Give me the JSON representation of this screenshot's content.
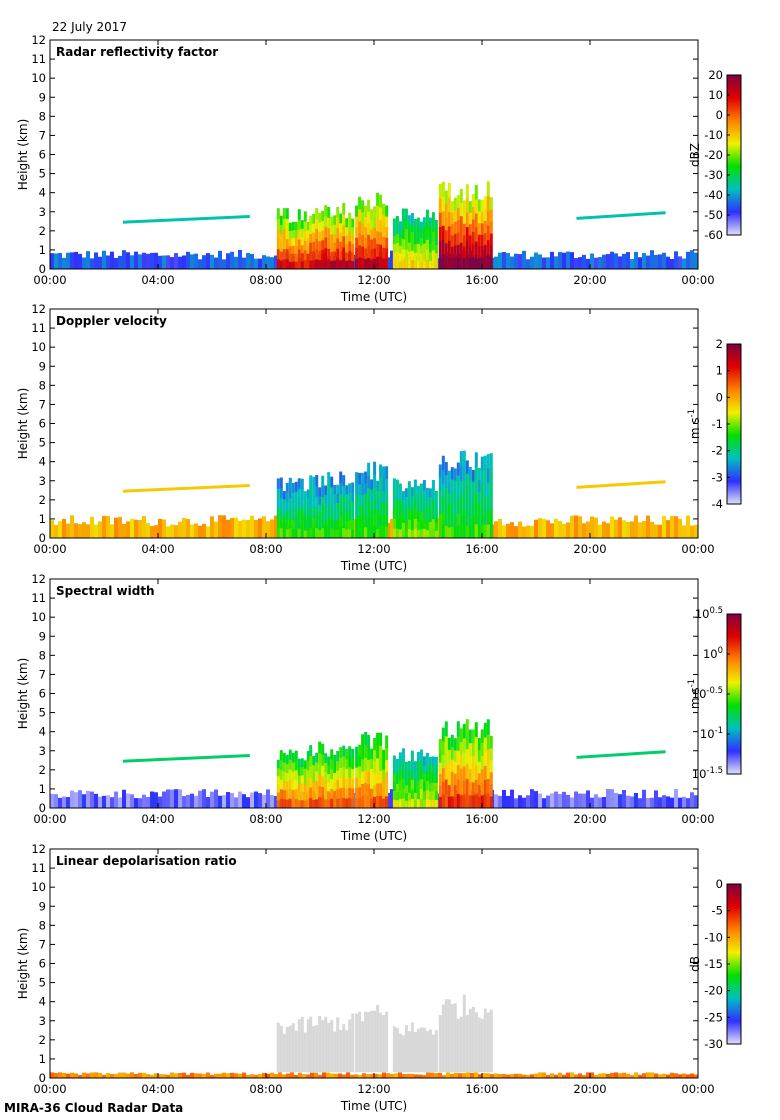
{
  "date": "22 July 2017",
  "footer": "MIRA-36 Cloud Radar Data",
  "chart_data": [
    {
      "type": "heatmap",
      "title": "Radar reflectivity factor",
      "xlabel": "Time (UTC)",
      "ylabel": "Height (km)",
      "x_ticks": [
        "00:00",
        "04:00",
        "08:00",
        "12:00",
        "16:00",
        "20:00",
        "00:00"
      ],
      "y_ticks": [
        "0",
        "1",
        "2",
        "3",
        "4",
        "5",
        "6",
        "7",
        "8",
        "9",
        "10",
        "11",
        "12"
      ],
      "ylim": [
        0,
        12
      ],
      "colorbar": {
        "label": "dBZ",
        "ticks": [
          "20",
          "10",
          "0",
          "-10",
          "-20",
          "-30",
          "-40",
          "-50",
          "-60"
        ],
        "range": [
          -60,
          20
        ]
      },
      "colors": [
        "#e0e0f8",
        "#3030ff",
        "#00c0c0",
        "#00e000",
        "#f0f000",
        "#ff8000",
        "#e00000",
        "#800040"
      ],
      "features": [
        {
          "name": "boundary layer clutter",
          "time_start_h": 0,
          "time_end_h": 24,
          "height_top_km": 1.0,
          "level": 0.18
        },
        {
          "name": "thin layer",
          "time_start_h": 2.7,
          "time_end_h": 7.4,
          "height_km": 2.5,
          "level": 0.3
        },
        {
          "name": "thin layer",
          "time_start_h": 19.5,
          "time_end_h": 22.8,
          "height_km": 2.7,
          "level": 0.3
        },
        {
          "name": "convective cell",
          "time_start_h": 8.4,
          "time_end_h": 9.6,
          "height_top_km": 3.2,
          "level": 0.85
        },
        {
          "name": "convective cell",
          "time_start_h": 9.6,
          "time_end_h": 11.2,
          "height_top_km": 3.5,
          "level": 0.9
        },
        {
          "name": "convective cell",
          "time_start_h": 11.3,
          "time_end_h": 12.5,
          "height_top_km": 4.0,
          "level": 0.9
        },
        {
          "name": "convective cell",
          "time_start_h": 12.7,
          "time_end_h": 14.3,
          "height_top_km": 3.2,
          "level": 0.6
        },
        {
          "name": "convective cell",
          "time_start_h": 14.4,
          "time_end_h": 16.4,
          "height_top_km": 4.7,
          "level": 1.0
        }
      ]
    },
    {
      "type": "heatmap",
      "title": "Doppler velocity",
      "xlabel": "Time (UTC)",
      "ylabel": "Height (km)",
      "x_ticks": [
        "00:00",
        "04:00",
        "08:00",
        "12:00",
        "16:00",
        "20:00",
        "00:00"
      ],
      "y_ticks": [
        "0",
        "1",
        "2",
        "3",
        "4",
        "5",
        "6",
        "7",
        "8",
        "9",
        "10",
        "11",
        "12"
      ],
      "ylim": [
        0,
        12
      ],
      "colorbar": {
        "label": "m s-1",
        "ticks": [
          "2",
          "1",
          "0",
          "-1",
          "-2",
          "-3",
          "-4"
        ],
        "range": [
          -4,
          2
        ]
      },
      "colors": [
        "#e0e0f8",
        "#3030ff",
        "#00c0c0",
        "#00e000",
        "#f0f000",
        "#ff8000",
        "#e00000",
        "#800040"
      ],
      "features": [
        {
          "name": "boundary layer",
          "time_start_h": 0,
          "time_end_h": 24,
          "height_top_km": 1.2,
          "level": 0.65
        },
        {
          "name": "thin layer",
          "time_start_h": 2.7,
          "time_end_h": 7.4,
          "height_km": 2.5,
          "level": 0.62
        },
        {
          "name": "thin layer",
          "time_start_h": 19.5,
          "time_end_h": 22.8,
          "height_km": 2.7,
          "level": 0.62
        },
        {
          "name": "convective cell",
          "time_start_h": 8.4,
          "time_end_h": 9.6,
          "height_top_km": 3.2,
          "level": 0.45
        },
        {
          "name": "convective cell",
          "time_start_h": 9.6,
          "time_end_h": 11.2,
          "height_top_km": 3.5,
          "level": 0.45
        },
        {
          "name": "convective cell",
          "time_start_h": 11.3,
          "time_end_h": 12.5,
          "height_top_km": 4.0,
          "level": 0.45
        },
        {
          "name": "convective cell",
          "time_start_h": 12.7,
          "time_end_h": 14.3,
          "height_top_km": 3.2,
          "level": 0.5
        },
        {
          "name": "convective cell",
          "time_start_h": 14.4,
          "time_end_h": 16.4,
          "height_top_km": 4.7,
          "level": 0.45
        }
      ]
    },
    {
      "type": "heatmap",
      "title": "Spectral width",
      "xlabel": "Time (UTC)",
      "ylabel": "Height (km)",
      "x_ticks": [
        "00:00",
        "04:00",
        "08:00",
        "12:00",
        "16:00",
        "20:00",
        "00:00"
      ],
      "y_ticks": [
        "0",
        "1",
        "2",
        "3",
        "4",
        "5",
        "6",
        "7",
        "8",
        "9",
        "10",
        "11",
        "12"
      ],
      "ylim": [
        0,
        12
      ],
      "colorbar": {
        "label": "m s-1",
        "ticks": [
          "10^0.5",
          "10^0",
          "10^-0.5",
          "10^-1",
          "10^-1.5"
        ],
        "range": [
          -1.5,
          0.5
        ],
        "scale": "log"
      },
      "colors": [
        "#e0e0f8",
        "#3030ff",
        "#00c0c0",
        "#00e000",
        "#f0f000",
        "#ff8000",
        "#e00000",
        "#800040"
      ],
      "features": [
        {
          "name": "boundary layer",
          "time_start_h": 0,
          "time_end_h": 24,
          "height_top_km": 1.0,
          "level": 0.1
        },
        {
          "name": "thin layer",
          "time_start_h": 2.7,
          "time_end_h": 7.4,
          "height_km": 2.5,
          "level": 0.35
        },
        {
          "name": "thin layer",
          "time_start_h": 19.5,
          "time_end_h": 22.8,
          "height_km": 2.7,
          "level": 0.35
        },
        {
          "name": "convective cell",
          "time_start_h": 8.4,
          "time_end_h": 9.6,
          "height_top_km": 3.2,
          "level": 0.75
        },
        {
          "name": "convective cell",
          "time_start_h": 9.6,
          "time_end_h": 11.2,
          "height_top_km": 3.5,
          "level": 0.75
        },
        {
          "name": "convective cell",
          "time_start_h": 11.3,
          "time_end_h": 12.5,
          "height_top_km": 4.0,
          "level": 0.75
        },
        {
          "name": "convective cell",
          "time_start_h": 12.7,
          "time_end_h": 14.3,
          "height_top_km": 3.2,
          "level": 0.55
        },
        {
          "name": "convective cell",
          "time_start_h": 14.4,
          "time_end_h": 16.4,
          "height_top_km": 4.7,
          "level": 0.8
        }
      ]
    },
    {
      "type": "heatmap",
      "title": "Linear depolarisation ratio",
      "xlabel": "Time (UTC)",
      "ylabel": "Height (km)",
      "x_ticks": [
        "00:00",
        "04:00",
        "08:00",
        "12:00",
        "16:00",
        "20:00",
        "00:00"
      ],
      "y_ticks": [
        "0",
        "1",
        "2",
        "3",
        "4",
        "5",
        "6",
        "7",
        "8",
        "9",
        "10",
        "11",
        "12"
      ],
      "ylim": [
        0,
        12
      ],
      "colorbar": {
        "label": "dB",
        "ticks": [
          "0",
          "-5",
          "-10",
          "-15",
          "-20",
          "-25",
          "-30"
        ],
        "range": [
          -30,
          0
        ]
      },
      "colors": [
        "#e0e0f8",
        "#3030ff",
        "#00c0c0",
        "#00e000",
        "#f0f000",
        "#ff8000",
        "#e00000",
        "#800040"
      ],
      "features": [
        {
          "name": "surface clutter",
          "time_start_h": 0,
          "time_end_h": 24,
          "height_top_km": 0.3,
          "level": 0.7
        },
        {
          "name": "no-data cell",
          "time_start_h": 8.4,
          "time_end_h": 9.6,
          "height_top_km": 3.2,
          "level": -1
        },
        {
          "name": "no-data cell",
          "time_start_h": 9.6,
          "time_end_h": 11.2,
          "height_top_km": 3.4,
          "level": -1
        },
        {
          "name": "no-data cell",
          "time_start_h": 11.3,
          "time_end_h": 12.5,
          "height_top_km": 3.9,
          "level": -1
        },
        {
          "name": "no-data cell",
          "time_start_h": 12.7,
          "time_end_h": 14.3,
          "height_top_km": 3.0,
          "level": -1
        },
        {
          "name": "no-data cell",
          "time_start_h": 14.4,
          "time_end_h": 16.4,
          "height_top_km": 4.4,
          "level": -1
        }
      ]
    }
  ]
}
